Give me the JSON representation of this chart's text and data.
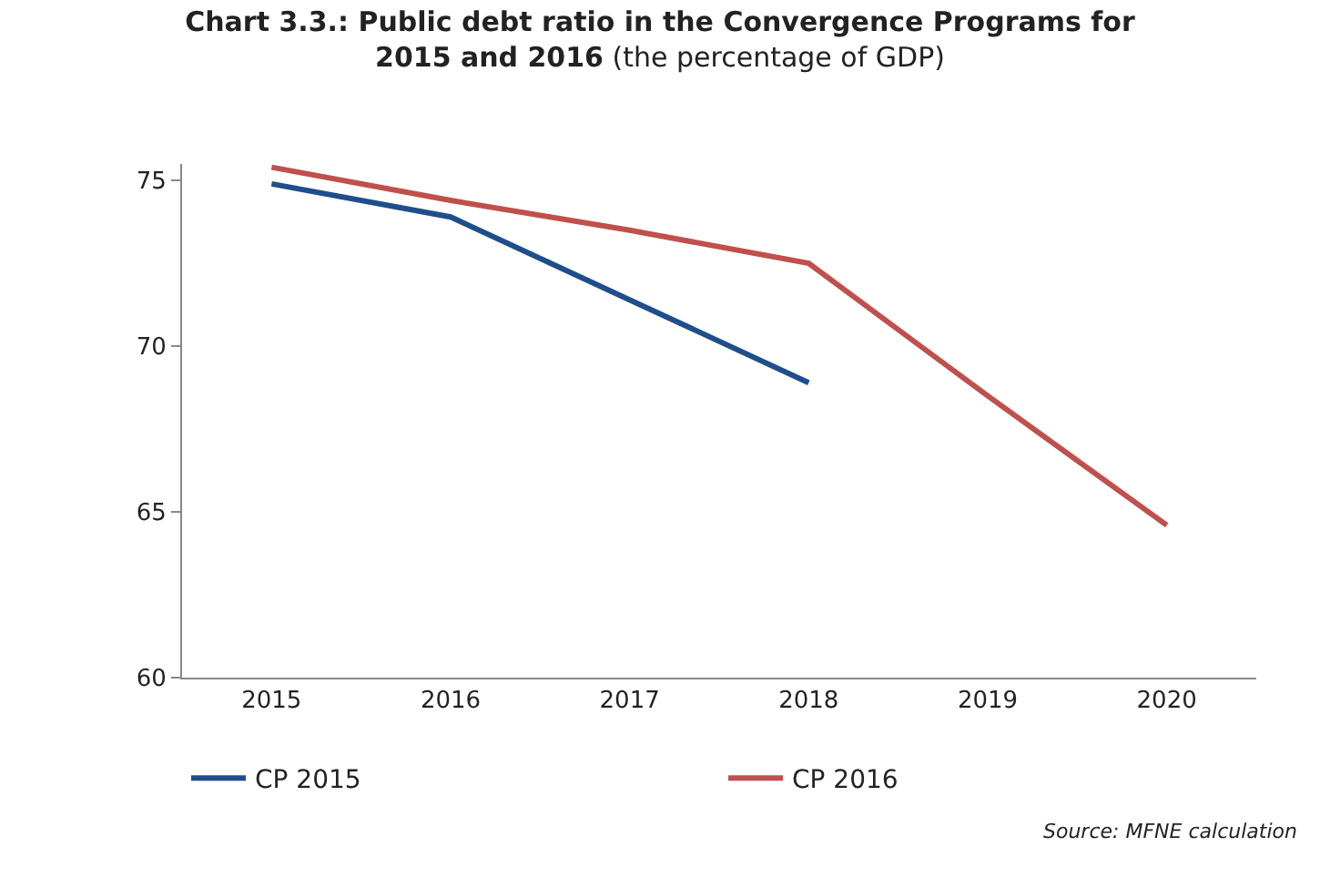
{
  "chart_data": {
    "type": "line",
    "title": "Chart 3.3.: Public debt ratio in the Convergence Programs for 2015 and 2016",
    "subtitle": "(the percentage of GDP)",
    "categories": [
      "2015",
      "2016",
      "2017",
      "2018",
      "2019",
      "2020"
    ],
    "series": [
      {
        "name": "CP 2015",
        "color": "#1f4e8c",
        "values": [
          74.9,
          73.9,
          71.4,
          68.9,
          null,
          null
        ]
      },
      {
        "name": "CP 2016",
        "color": "#c0504d",
        "values": [
          75.4,
          74.4,
          73.5,
          72.5,
          68.5,
          64.6
        ]
      }
    ],
    "ylim": [
      60,
      75.5
    ],
    "yticks": [
      60,
      65,
      70,
      75
    ],
    "legend": "bottom",
    "marker": "none",
    "line_style": "solid",
    "annotations": [
      "Source: MFNE calculation"
    ]
  }
}
